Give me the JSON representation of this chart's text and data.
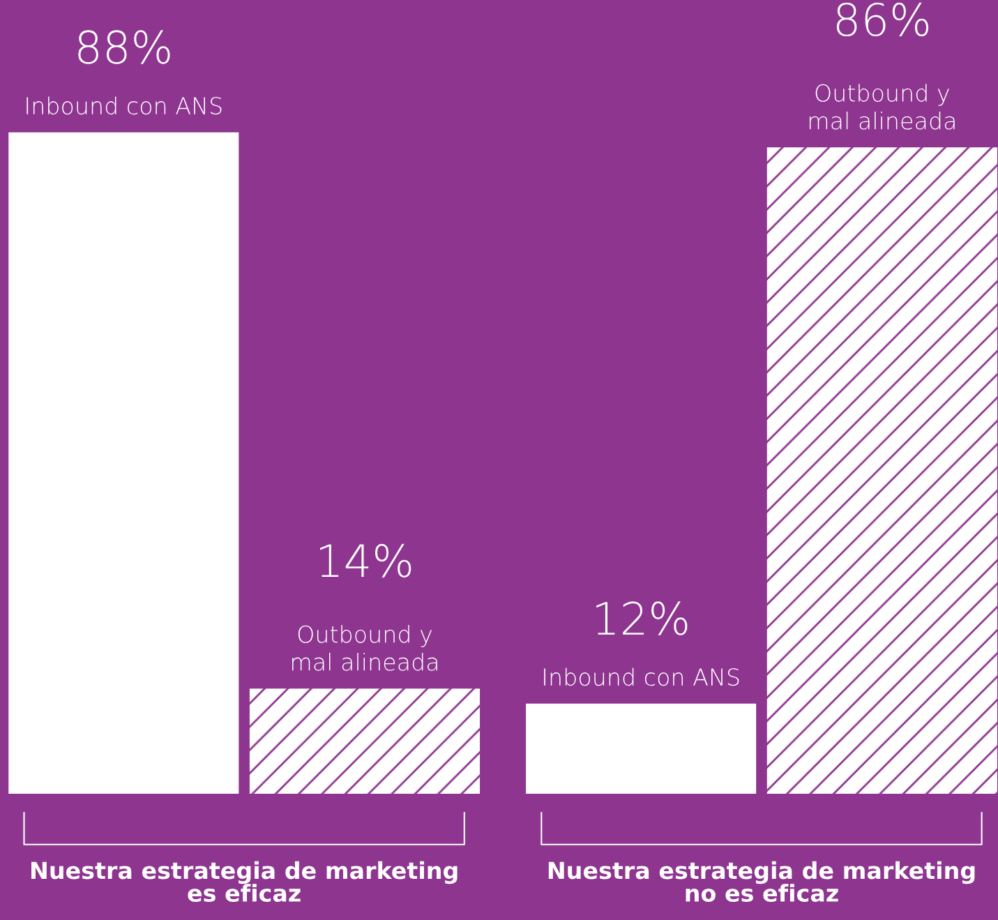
{
  "chart_data": {
    "type": "bar",
    "categories": [
      "Nuestra estrategia de marketing\nes eficaz",
      "Nuestra estrategia de marketing\nno es eficaz"
    ],
    "series": [
      {
        "name": "Inbound con ANS",
        "color": "#ffffff",
        "values": [
          88,
          12
        ],
        "value_labels": [
          "88%",
          "12%"
        ]
      },
      {
        "name": "Outbound y\nmal alineada",
        "color": "#ffffff",
        "values": [
          14,
          86
        ],
        "value_labels": [
          "14%",
          "86%"
        ]
      }
    ]
  }
}
